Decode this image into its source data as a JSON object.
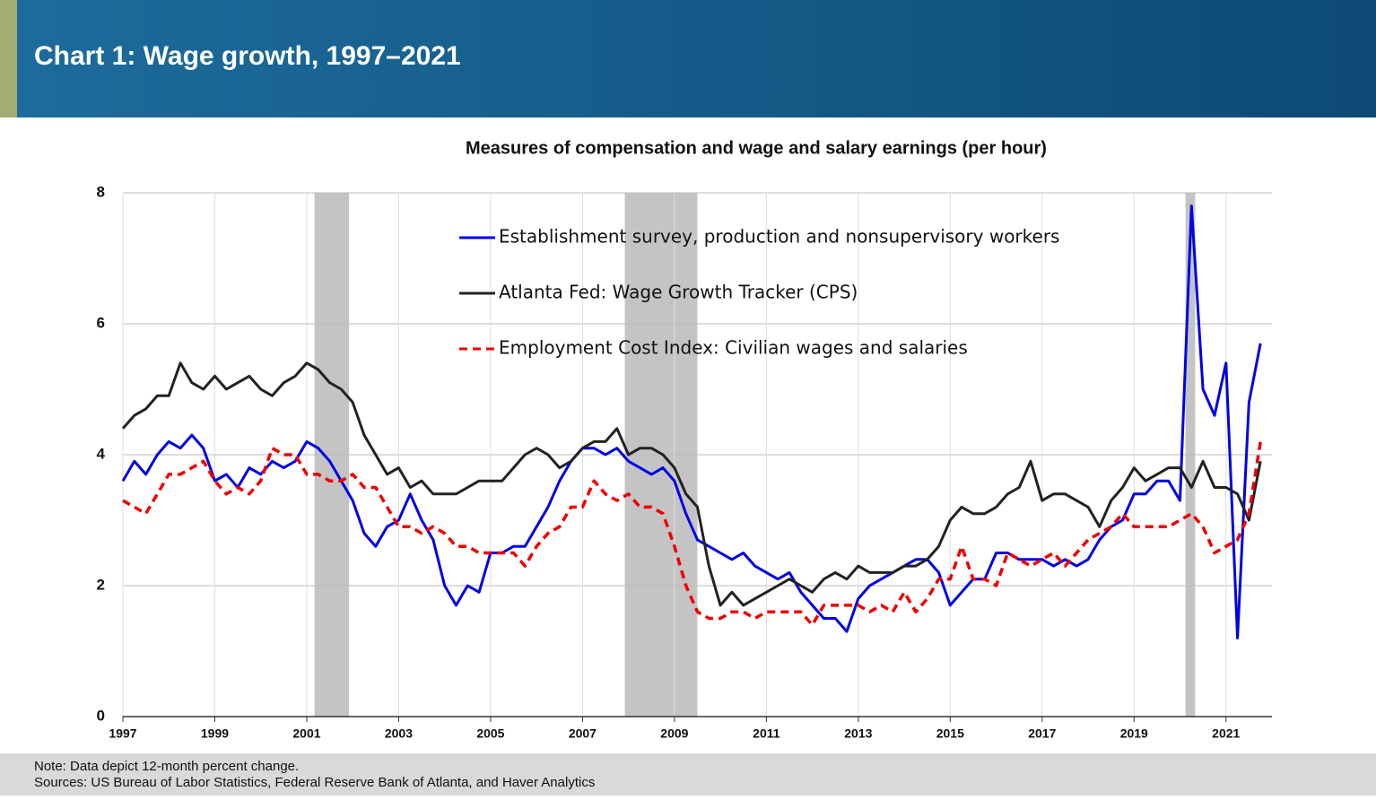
{
  "chart_data": {
    "type": "line",
    "title": "Chart 1: Wage growth, 1997–2021",
    "subtitle": "Measures of compensation and wage and salary earnings (per hour)",
    "notes": [
      "Note: Data depict 12-month percent change.",
      "Sources: US Bureau of Labor Statistics, Federal Reserve Bank of Atlanta, and Haver Analytics"
    ],
    "x": [
      1997,
      1997.25,
      1997.5,
      1997.75,
      1998,
      1998.25,
      1998.5,
      1998.75,
      1999,
      1999.25,
      1999.5,
      1999.75,
      2000,
      2000.25,
      2000.5,
      2000.75,
      2001,
      2001.25,
      2001.5,
      2001.75,
      2002,
      2002.25,
      2002.5,
      2002.75,
      2003,
      2003.25,
      2003.5,
      2003.75,
      2004,
      2004.25,
      2004.5,
      2004.75,
      2005,
      2005.25,
      2005.5,
      2005.75,
      2006,
      2006.25,
      2006.5,
      2006.75,
      2007,
      2007.25,
      2007.5,
      2007.75,
      2008,
      2008.25,
      2008.5,
      2008.75,
      2009,
      2009.25,
      2009.5,
      2009.75,
      2010,
      2010.25,
      2010.5,
      2010.75,
      2011,
      2011.25,
      2011.5,
      2011.75,
      2012,
      2012.25,
      2012.5,
      2012.75,
      2013,
      2013.25,
      2013.5,
      2013.75,
      2014,
      2014.25,
      2014.5,
      2014.75,
      2015,
      2015.25,
      2015.5,
      2015.75,
      2016,
      2016.25,
      2016.5,
      2016.75,
      2017,
      2017.25,
      2017.5,
      2017.75,
      2018,
      2018.25,
      2018.5,
      2018.75,
      2019,
      2019.25,
      2019.5,
      2019.75,
      2020,
      2020.25,
      2020.5,
      2020.75,
      2021,
      2021.25,
      2021.5,
      2021.75
    ],
    "series": [
      {
        "name": "Establishment survey, production and nonsupervisory workers",
        "color": "#0000e6",
        "dashed": false,
        "values": [
          3.6,
          3.9,
          3.7,
          4.0,
          4.2,
          4.1,
          4.3,
          4.1,
          3.6,
          3.7,
          3.5,
          3.8,
          3.7,
          3.9,
          3.8,
          3.9,
          4.2,
          4.1,
          3.9,
          3.6,
          3.3,
          2.8,
          2.6,
          2.9,
          3.0,
          3.4,
          3.0,
          2.7,
          2.0,
          1.7,
          2.0,
          1.9,
          2.5,
          2.5,
          2.6,
          2.6,
          2.9,
          3.2,
          3.6,
          3.9,
          4.1,
          4.1,
          4.0,
          4.1,
          3.9,
          3.8,
          3.7,
          3.8,
          3.6,
          3.1,
          2.7,
          2.6,
          2.5,
          2.4,
          2.5,
          2.3,
          2.2,
          2.1,
          2.2,
          1.9,
          1.7,
          1.5,
          1.5,
          1.3,
          1.8,
          2.0,
          2.1,
          2.2,
          2.3,
          2.4,
          2.4,
          2.2,
          1.7,
          1.9,
          2.1,
          2.1,
          2.5,
          2.5,
          2.4,
          2.4,
          2.4,
          2.3,
          2.4,
          2.3,
          2.4,
          2.7,
          2.9,
          3.0,
          3.4,
          3.4,
          3.6,
          3.6,
          3.3,
          7.8,
          5.0,
          4.6,
          5.4,
          1.2,
          4.8,
          5.7
        ]
      },
      {
        "name": "Atlanta Fed:  Wage Growth Tracker (CPS)",
        "color": "#222222",
        "dashed": false,
        "values": [
          4.4,
          4.6,
          4.7,
          4.9,
          4.9,
          5.4,
          5.1,
          5.0,
          5.2,
          5.0,
          5.1,
          5.2,
          5.0,
          4.9,
          5.1,
          5.2,
          5.4,
          5.3,
          5.1,
          5.0,
          4.8,
          4.3,
          4.0,
          3.7,
          3.8,
          3.5,
          3.6,
          3.4,
          3.4,
          3.4,
          3.5,
          3.6,
          3.6,
          3.6,
          3.8,
          4.0,
          4.1,
          4.0,
          3.8,
          3.9,
          4.1,
          4.2,
          4.2,
          4.4,
          4.0,
          4.1,
          4.1,
          4.0,
          3.8,
          3.4,
          3.2,
          2.3,
          1.7,
          1.9,
          1.7,
          1.8,
          1.9,
          2.0,
          2.1,
          2.0,
          1.9,
          2.1,
          2.2,
          2.1,
          2.3,
          2.2,
          2.2,
          2.2,
          2.3,
          2.3,
          2.4,
          2.6,
          3.0,
          3.2,
          3.1,
          3.1,
          3.2,
          3.4,
          3.5,
          3.9,
          3.3,
          3.4,
          3.4,
          3.3,
          3.2,
          2.9,
          3.3,
          3.5,
          3.8,
          3.6,
          3.7,
          3.8,
          3.8,
          3.5,
          3.9,
          3.5,
          3.5,
          3.4,
          3.0,
          3.9
        ]
      },
      {
        "name": "Employment Cost Index:  Civilian wages and salaries",
        "color": "#ee0000",
        "dashed": true,
        "values": [
          3.3,
          3.2,
          3.1,
          3.4,
          3.7,
          3.7,
          3.8,
          3.9,
          3.6,
          3.4,
          3.5,
          3.4,
          3.6,
          4.1,
          4.0,
          4.0,
          3.7,
          3.7,
          3.6,
          3.6,
          3.7,
          3.5,
          3.5,
          3.2,
          2.9,
          2.9,
          2.8,
          2.9,
          2.8,
          2.6,
          2.6,
          2.5,
          2.5,
          2.5,
          2.5,
          2.3,
          2.6,
          2.8,
          2.9,
          3.2,
          3.2,
          3.6,
          3.4,
          3.3,
          3.4,
          3.2,
          3.2,
          3.1,
          2.6,
          2.0,
          1.6,
          1.5,
          1.5,
          1.6,
          1.6,
          1.5,
          1.6,
          1.6,
          1.6,
          1.6,
          1.4,
          1.7,
          1.7,
          1.7,
          1.7,
          1.6,
          1.7,
          1.6,
          1.9,
          1.6,
          1.8,
          2.1,
          2.1,
          2.6,
          2.1,
          2.1,
          2.0,
          2.5,
          2.4,
          2.3,
          2.4,
          2.5,
          2.3,
          2.5,
          2.7,
          2.8,
          2.9,
          3.1,
          2.9,
          2.9,
          2.9,
          2.9,
          3.0,
          3.1,
          2.9,
          2.5,
          2.6,
          2.7,
          3.1,
          4.2
        ]
      }
    ],
    "recessions": [
      [
        2001.17,
        2001.92
      ],
      [
        2007.92,
        2009.5
      ],
      [
        2020.12,
        2020.33
      ]
    ],
    "xlim": [
      1997,
      2022
    ],
    "xticks": [
      1997,
      1999,
      2001,
      2003,
      2005,
      2007,
      2009,
      2011,
      2013,
      2015,
      2017,
      2019,
      2021
    ],
    "ylim": [
      0,
      8
    ],
    "yticks": [
      0,
      2,
      4,
      6,
      8
    ],
    "grid": true,
    "legend": "top-center"
  }
}
